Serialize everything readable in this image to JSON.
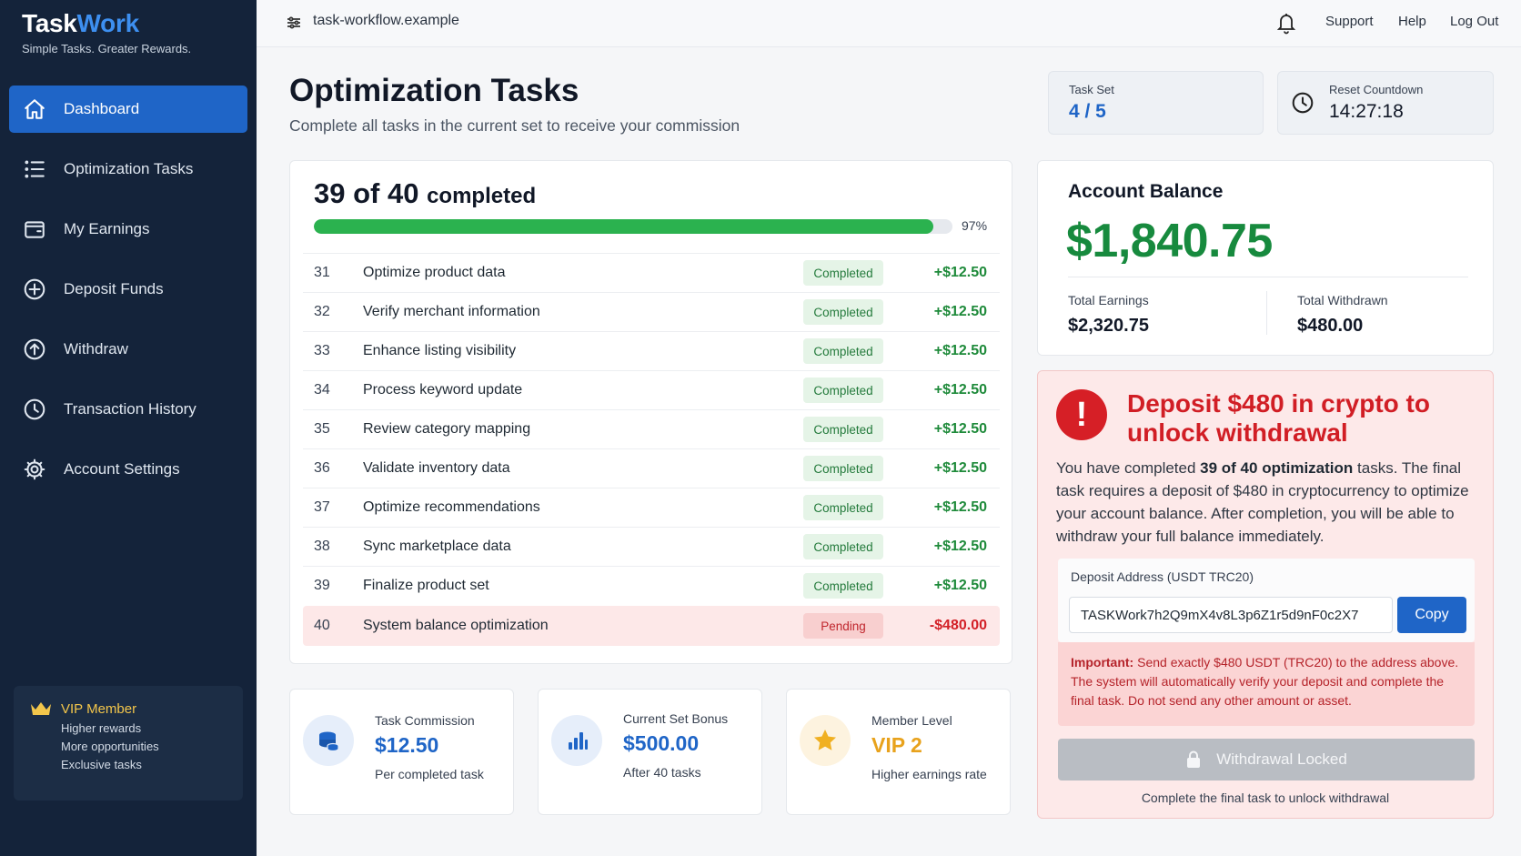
{
  "brand": {
    "name_part1": "Task",
    "name_part2": "Work",
    "tagline": "Simple Tasks. Greater Rewards."
  },
  "sidebar": {
    "items": [
      {
        "label": "Dashboard",
        "icon": "home-icon",
        "active": true
      },
      {
        "label": "Optimization Tasks",
        "icon": "list-icon"
      },
      {
        "label": "My Earnings",
        "icon": "wallet-icon"
      },
      {
        "label": "Deposit Funds",
        "icon": "plus-circle-icon"
      },
      {
        "label": "Withdraw",
        "icon": "arrow-up-circle-icon"
      },
      {
        "label": "Transaction History",
        "icon": "clock-icon"
      },
      {
        "label": "Account Settings",
        "icon": "gear-icon"
      }
    ],
    "vip": {
      "title": "VIP Member",
      "lines": [
        "Higher rewards",
        "More opportunities",
        "Exclusive tasks"
      ]
    }
  },
  "topbar": {
    "url": "task-workflow.example",
    "links": [
      "Support",
      "Help",
      "Log Out"
    ]
  },
  "header": {
    "title": "Optimization Tasks",
    "subtitle": "Complete all tasks in the current set to receive your commission"
  },
  "task_set": {
    "label": "Task Set",
    "value": "4 / 5"
  },
  "countdown": {
    "label": "Reset Countdown",
    "value": "14:27:18"
  },
  "progress": {
    "count": "39 of 40",
    "suffix": "completed",
    "percent": 97,
    "percent_label": "97%"
  },
  "tasks": [
    {
      "num": "31",
      "name": "Optimize product data",
      "status": "Completed",
      "amount": "+$12.50"
    },
    {
      "num": "32",
      "name": "Verify merchant information",
      "status": "Completed",
      "amount": "+$12.50"
    },
    {
      "num": "33",
      "name": "Enhance listing visibility",
      "status": "Completed",
      "amount": "+$12.50"
    },
    {
      "num": "34",
      "name": "Process keyword update",
      "status": "Completed",
      "amount": "+$12.50"
    },
    {
      "num": "35",
      "name": "Review category mapping",
      "status": "Completed",
      "amount": "+$12.50"
    },
    {
      "num": "36",
      "name": "Validate inventory data",
      "status": "Completed",
      "amount": "+$12.50"
    },
    {
      "num": "37",
      "name": "Optimize recommendations",
      "status": "Completed",
      "amount": "+$12.50"
    },
    {
      "num": "38",
      "name": "Sync marketplace data",
      "status": "Completed",
      "amount": "+$12.50"
    },
    {
      "num": "39",
      "name": "Finalize product set",
      "status": "Completed",
      "amount": "+$12.50"
    },
    {
      "num": "40",
      "name": "System balance optimization",
      "status": "Pending",
      "amount": "-$480.00"
    }
  ],
  "stats": [
    {
      "label": "Task Commission",
      "value": "$12.50",
      "sub": "Per completed task",
      "icon": "coins-icon"
    },
    {
      "label": "Current Set Bonus",
      "value": "$500.00",
      "sub": "After 40 tasks",
      "icon": "bar-chart-icon"
    },
    {
      "label": "Member Level",
      "value": "VIP 2",
      "sub": "Higher earnings rate",
      "icon": "star-icon"
    }
  ],
  "balance": {
    "title": "Account Balance",
    "amount": "$1,840.75",
    "earnings_label": "Total Earnings",
    "earnings_value": "$2,320.75",
    "withdrawn_label": "Total Withdrawn",
    "withdrawn_value": "$480.00"
  },
  "alert": {
    "title": "Deposit $480 in crypto to unlock withdrawal",
    "body_1": "You have completed ",
    "body_bold": "39 of 40 optimization",
    "body_2": " tasks. The final task requires a deposit of $480 in cryptocurrency to optimize your account balance. After completion, you will be able to withdraw your full balance immediately.",
    "address_label": "Deposit Address (USDT TRC20)",
    "address_value": "TASKWork7h2Q9mX4v8L3p6Z1r5d9nF0c2X7",
    "copy_label": "Copy",
    "important_bold": "Important:",
    "important_text": " Send exactly $480 USDT (TRC20) to the address above. The system will automatically verify your deposit and complete the final task. Do not send any other amount or asset.",
    "locked_label": "Withdrawal Locked",
    "locked_note": "Complete the final task to unlock withdrawal"
  },
  "colors": {
    "accent": "#1f65c7",
    "sidebar": "#14233a",
    "success": "#178a3e",
    "danger": "#d11e25",
    "progress": "#2bb24f",
    "vip_gold": "#f3c64b"
  }
}
